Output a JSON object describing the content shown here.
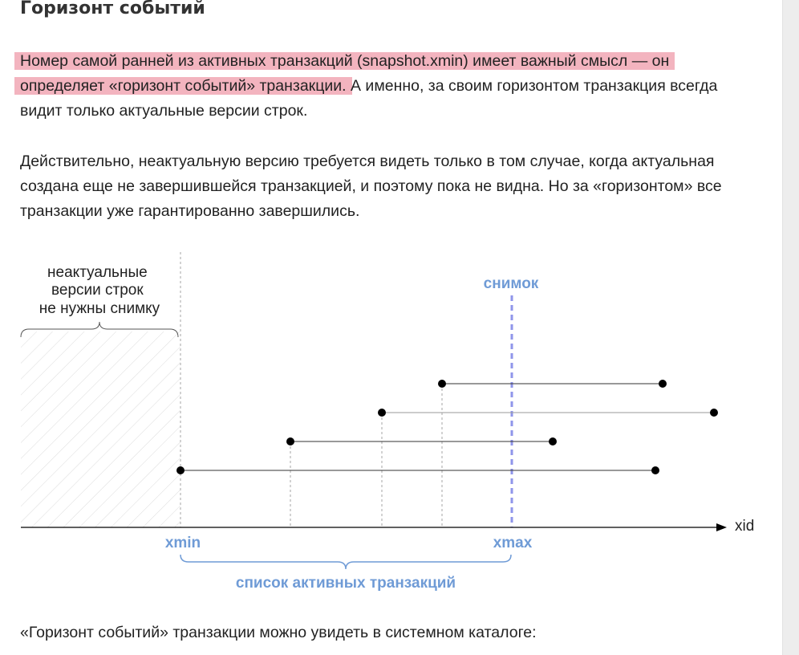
{
  "heading": "Горизонт событий",
  "paragraphs": {
    "p1_highlight": "Номер самой ранней из активных транзакций (snapshot.xmin) имеет важный смысл — он определяет «горизонт событий» транзакции.",
    "p1_rest": " А именно, за своим горизонтом транзакция всегда видит только актуальные версии строк.",
    "p2": "Действительно, неактуальную версию требуется видеть только в том случае, когда актуальная создана еще не завершившейся транзакцией, и поэтому пока не видна. Но за «горизонтом» все транзакции уже гарантированно завершились.",
    "p3": "«Горизонт событий» транзакции можно увидеть в системном каталоге:"
  },
  "diagram": {
    "obsolete_label": [
      "неактуальные",
      "версии строк",
      "не нужны снимку"
    ],
    "snapshot_label": "снимок",
    "axis_label": "xid",
    "xmin_label": "xmin",
    "xmax_label": "xmax",
    "active_list_label": "список активных транзакций",
    "colors": {
      "accent": "#6f9bd6",
      "snapshot_line": "#8f95ea",
      "highlight": "#f3b4bf",
      "text": "#222222"
    }
  }
}
